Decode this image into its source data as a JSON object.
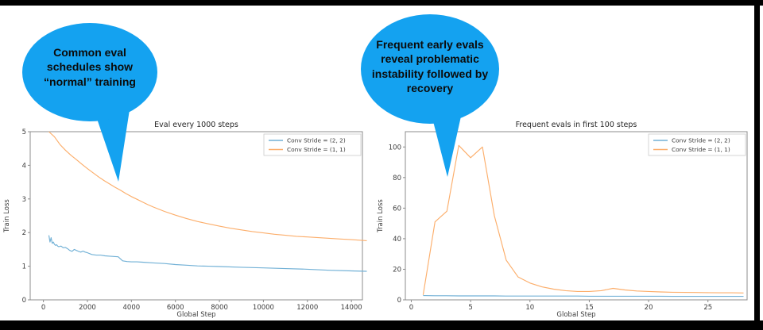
{
  "callouts": [
    {
      "text": "Common eval schedules show “normal” training",
      "bubble_color": "#14a2f0"
    },
    {
      "text": "Frequent early evals reveal problematic instability followed by recovery",
      "bubble_color": "#14a2f0"
    }
  ],
  "colors": {
    "series_blue": "#72b1d6",
    "series_orange": "#fcae6b",
    "spine": "#8c8c8c",
    "tick_text": "#3c3c3c",
    "title_text": "#262626",
    "legend_border": "#cccccc",
    "frame": "#000000",
    "slide_bg": "#ffffff"
  },
  "chart_data": [
    {
      "type": "line",
      "title": "Eval every 1000 steps",
      "xlabel": "Global Step",
      "ylabel": "Train Loss",
      "xlim": [
        -600,
        14500
      ],
      "ylim": [
        0,
        5
      ],
      "xticks": [
        0,
        2000,
        4000,
        6000,
        8000,
        10000,
        12000,
        14000
      ],
      "yticks": [
        0,
        1,
        2,
        3,
        4,
        5
      ],
      "grid": false,
      "legend_position": "upper right",
      "series": [
        {
          "name": "Conv Stride =  (2, 2)",
          "color": "#72b1d6",
          "x": [
            250,
            300,
            350,
            400,
            450,
            500,
            550,
            600,
            650,
            700,
            800,
            900,
            1000,
            1100,
            1200,
            1300,
            1400,
            1500,
            1600,
            1700,
            1800,
            1900,
            2000,
            2200,
            2400,
            2600,
            2800,
            3000,
            3200,
            3400,
            3500,
            3600,
            3800,
            4000,
            4250,
            4500,
            5000,
            5500,
            6000,
            6500,
            7000,
            7500,
            8000,
            9000,
            10000,
            11000,
            12000,
            13000,
            14000,
            14700
          ],
          "y": [
            1.92,
            1.72,
            1.85,
            1.68,
            1.72,
            1.65,
            1.62,
            1.64,
            1.6,
            1.58,
            1.6,
            1.55,
            1.56,
            1.52,
            1.47,
            1.44,
            1.5,
            1.47,
            1.44,
            1.42,
            1.45,
            1.42,
            1.4,
            1.35,
            1.33,
            1.33,
            1.31,
            1.3,
            1.29,
            1.28,
            1.22,
            1.16,
            1.14,
            1.13,
            1.13,
            1.12,
            1.1,
            1.08,
            1.05,
            1.03,
            1.01,
            1.0,
            0.99,
            0.97,
            0.95,
            0.93,
            0.91,
            0.88,
            0.86,
            0.85
          ]
        },
        {
          "name": "Conv Stride =  (1, 1)",
          "color": "#fcae6b",
          "x": [
            250,
            500,
            750,
            1000,
            1250,
            1500,
            1750,
            2000,
            2250,
            2500,
            2750,
            3000,
            3250,
            3500,
            3750,
            4000,
            4250,
            4500,
            4750,
            5000,
            5500,
            6000,
            6500,
            7000,
            7500,
            8000,
            8500,
            9000,
            9500,
            10000,
            10500,
            11000,
            11500,
            12000,
            12500,
            13000,
            13500,
            14000,
            14700
          ],
          "y": [
            5.0,
            4.85,
            4.62,
            4.45,
            4.3,
            4.17,
            4.03,
            3.9,
            3.78,
            3.66,
            3.55,
            3.45,
            3.35,
            3.26,
            3.16,
            3.07,
            2.99,
            2.91,
            2.83,
            2.76,
            2.63,
            2.52,
            2.42,
            2.33,
            2.26,
            2.19,
            2.13,
            2.08,
            2.03,
            1.99,
            1.95,
            1.92,
            1.89,
            1.87,
            1.85,
            1.83,
            1.81,
            1.79,
            1.76
          ]
        }
      ]
    },
    {
      "type": "line",
      "title": "Frequent evals in first 100 steps",
      "xlabel": "Global Step",
      "ylabel": "Train Loss",
      "xlim": [
        -0.5,
        28.3
      ],
      "ylim": [
        0,
        110
      ],
      "xticks": [
        0,
        5,
        10,
        15,
        20,
        25
      ],
      "yticks": [
        0,
        20,
        40,
        60,
        80,
        100
      ],
      "grid": false,
      "legend_position": "upper right",
      "series": [
        {
          "name": "Conv Stride =  (2, 2)",
          "color": "#72b1d6",
          "x": [
            1,
            2,
            3,
            4,
            5,
            6,
            7,
            8,
            9,
            10,
            11,
            12,
            13,
            14,
            15,
            16,
            17,
            18,
            19,
            20,
            21,
            22,
            23,
            24,
            25,
            26,
            27,
            28
          ],
          "y": [
            2.8,
            2.7,
            2.7,
            2.6,
            2.6,
            2.6,
            2.6,
            2.5,
            2.5,
            2.5,
            2.5,
            2.5,
            2.5,
            2.5,
            2.4,
            2.4,
            2.4,
            2.4,
            2.4,
            2.4,
            2.4,
            2.3,
            2.3,
            2.3,
            2.3,
            2.3,
            2.3,
            2.3
          ]
        },
        {
          "name": "Conv Stride =  (1, 1)",
          "color": "#fcae6b",
          "x": [
            1,
            2,
            3,
            4,
            5,
            6,
            7,
            8,
            9,
            10,
            11,
            12,
            13,
            14,
            15,
            16,
            17,
            18,
            19,
            20,
            21,
            22,
            23,
            24,
            25,
            26,
            27,
            28
          ],
          "y": [
            3.2,
            51,
            58,
            101,
            93,
            100,
            55,
            26,
            15,
            11,
            8.5,
            7,
            6,
            5.5,
            5.5,
            6,
            7.5,
            6.5,
            5.8,
            5.5,
            5.2,
            5,
            4.9,
            4.8,
            4.7,
            4.6,
            4.6,
            4.5
          ]
        }
      ]
    }
  ]
}
